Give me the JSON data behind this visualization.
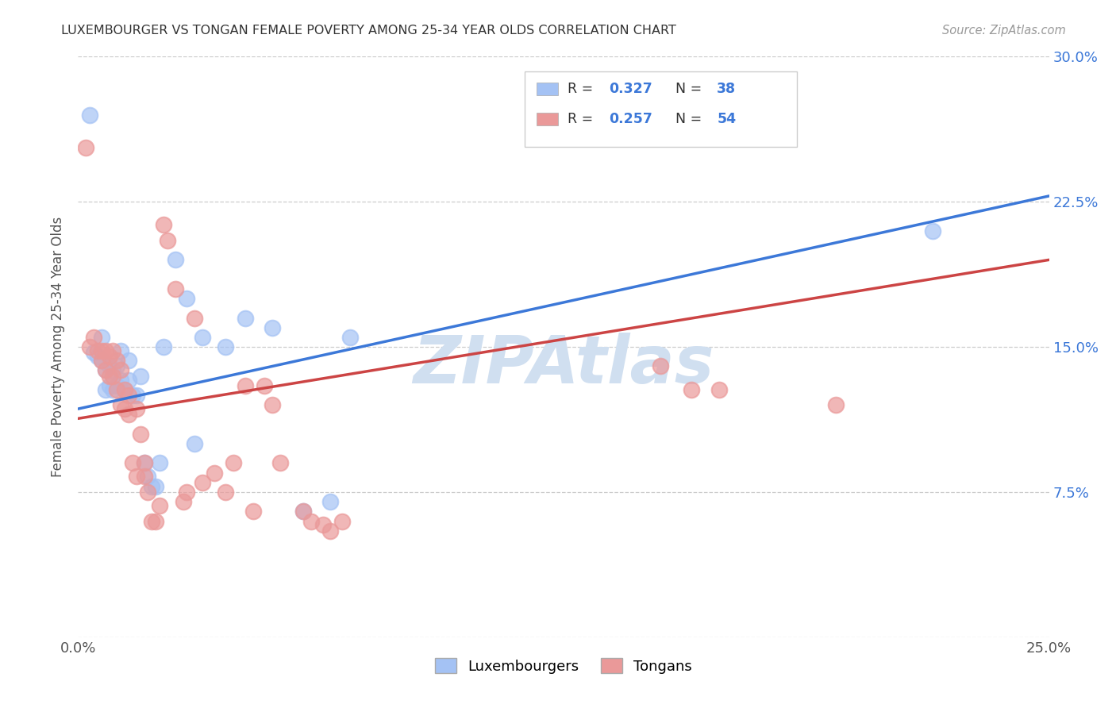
{
  "title": "LUXEMBOURGER VS TONGAN FEMALE POVERTY AMONG 25-34 YEAR OLDS CORRELATION CHART",
  "source": "Source: ZipAtlas.com",
  "ylabel": "Female Poverty Among 25-34 Year Olds",
  "xlim": [
    0.0,
    0.25
  ],
  "ylim": [
    0.0,
    0.3
  ],
  "xtick_positions": [
    0.0,
    0.05,
    0.1,
    0.15,
    0.2,
    0.25
  ],
  "xtick_labels": [
    "0.0%",
    "",
    "",
    "",
    "",
    "25.0%"
  ],
  "ytick_positions": [
    0.0,
    0.075,
    0.15,
    0.225,
    0.3
  ],
  "ytick_labels_right": [
    "",
    "7.5%",
    "15.0%",
    "22.5%",
    "30.0%"
  ],
  "blue_scatter_color": "#a4c2f4",
  "pink_scatter_color": "#ea9999",
  "blue_line_color": "#3c78d8",
  "pink_line_color": "#cc4444",
  "watermark_color": "#d0dff0",
  "legend_label_blue": "Luxembourgers",
  "legend_label_pink": "Tongans",
  "lux_x": [
    0.003,
    0.004,
    0.005,
    0.006,
    0.006,
    0.007,
    0.007,
    0.008,
    0.008,
    0.009,
    0.009,
    0.01,
    0.01,
    0.011,
    0.011,
    0.012,
    0.013,
    0.013,
    0.014,
    0.015,
    0.016,
    0.017,
    0.018,
    0.019,
    0.02,
    0.021,
    0.022,
    0.025,
    0.028,
    0.03,
    0.032,
    0.038,
    0.043,
    0.05,
    0.058,
    0.065,
    0.07,
    0.22
  ],
  "lux_y": [
    0.27,
    0.147,
    0.145,
    0.143,
    0.155,
    0.138,
    0.128,
    0.14,
    0.13,
    0.138,
    0.128,
    0.14,
    0.13,
    0.148,
    0.133,
    0.128,
    0.133,
    0.143,
    0.125,
    0.125,
    0.135,
    0.09,
    0.083,
    0.078,
    0.078,
    0.09,
    0.15,
    0.195,
    0.175,
    0.1,
    0.155,
    0.15,
    0.165,
    0.16,
    0.065,
    0.07,
    0.155,
    0.21
  ],
  "ton_x": [
    0.002,
    0.003,
    0.004,
    0.005,
    0.006,
    0.006,
    0.007,
    0.007,
    0.008,
    0.008,
    0.009,
    0.009,
    0.01,
    0.01,
    0.011,
    0.011,
    0.012,
    0.012,
    0.013,
    0.013,
    0.014,
    0.015,
    0.015,
    0.016,
    0.017,
    0.017,
    0.018,
    0.019,
    0.02,
    0.021,
    0.022,
    0.023,
    0.025,
    0.027,
    0.028,
    0.03,
    0.032,
    0.035,
    0.038,
    0.04,
    0.043,
    0.045,
    0.048,
    0.05,
    0.052,
    0.058,
    0.06,
    0.063,
    0.065,
    0.068,
    0.15,
    0.158,
    0.165,
    0.195
  ],
  "ton_y": [
    0.253,
    0.15,
    0.155,
    0.148,
    0.148,
    0.143,
    0.138,
    0.148,
    0.145,
    0.135,
    0.148,
    0.135,
    0.143,
    0.128,
    0.138,
    0.12,
    0.128,
    0.118,
    0.125,
    0.115,
    0.09,
    0.083,
    0.118,
    0.105,
    0.09,
    0.083,
    0.075,
    0.06,
    0.06,
    0.068,
    0.213,
    0.205,
    0.18,
    0.07,
    0.075,
    0.165,
    0.08,
    0.085,
    0.075,
    0.09,
    0.13,
    0.065,
    0.13,
    0.12,
    0.09,
    0.065,
    0.06,
    0.058,
    0.055,
    0.06,
    0.14,
    0.128,
    0.128,
    0.12
  ],
  "lux_line_x0": 0.0,
  "lux_line_y0": 0.118,
  "lux_line_x1": 0.25,
  "lux_line_y1": 0.228,
  "ton_line_x0": 0.0,
  "ton_line_y0": 0.113,
  "ton_line_x1": 0.25,
  "ton_line_y1": 0.195
}
